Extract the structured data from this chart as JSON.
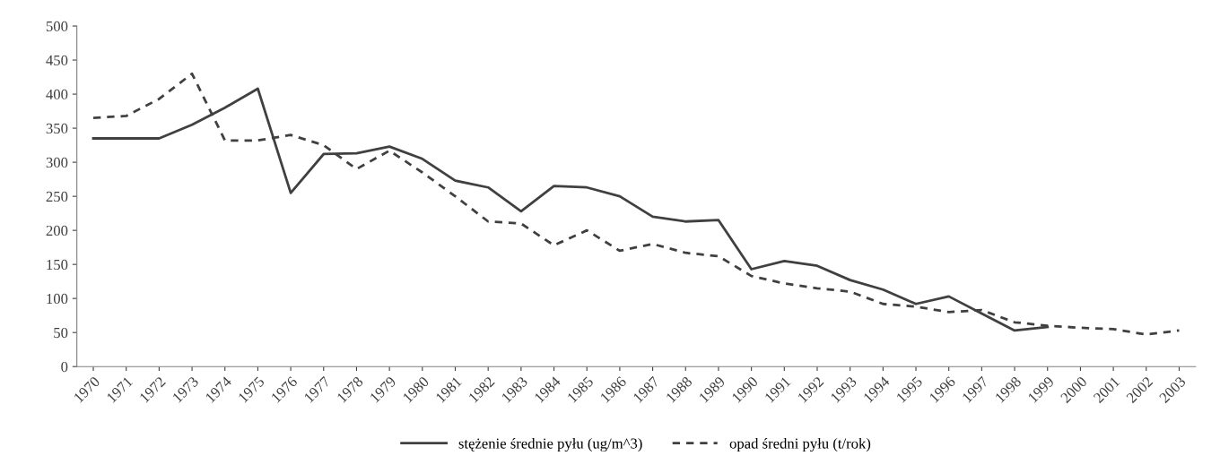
{
  "chart_data": {
    "type": "line",
    "categories": [
      "1970",
      "1971",
      "1972",
      "1973",
      "1974",
      "1975",
      "1976",
      "1977",
      "1978",
      "1979",
      "1980",
      "1981",
      "1982",
      "1983",
      "1984",
      "1985",
      "1986",
      "1987",
      "1988",
      "1989",
      "1990",
      "1991",
      "1992",
      "1993",
      "1994",
      "1995",
      "1996",
      "1997",
      "1998",
      "1999",
      "2000",
      "2001",
      "2002",
      "2003"
    ],
    "series": [
      {
        "name": "stężenie średnie pyłu (ug/m^3)",
        "color": "#404040",
        "line_style": "solid",
        "values": [
          335,
          335,
          335,
          355,
          380,
          408,
          255,
          312,
          313,
          323,
          305,
          273,
          263,
          228,
          265,
          263,
          250,
          220,
          213,
          215,
          143,
          155,
          148,
          127,
          113,
          92,
          103,
          78,
          53,
          58,
          null,
          null,
          null,
          null
        ]
      },
      {
        "name": "opad średni pyłu (t/rok)",
        "color": "#404040",
        "line_style": "dashed",
        "values": [
          365,
          368,
          393,
          430,
          332,
          332,
          340,
          325,
          290,
          317,
          285,
          250,
          213,
          210,
          178,
          200,
          170,
          180,
          167,
          162,
          133,
          122,
          115,
          110,
          92,
          88,
          80,
          83,
          65,
          60,
          57,
          55,
          47,
          53
        ]
      }
    ],
    "ylim": [
      0,
      500
    ],
    "yticks": [
      0,
      50,
      100,
      150,
      200,
      250,
      300,
      350,
      400,
      450,
      500
    ],
    "grid": false,
    "legend": "bottom",
    "marker": "none"
  }
}
